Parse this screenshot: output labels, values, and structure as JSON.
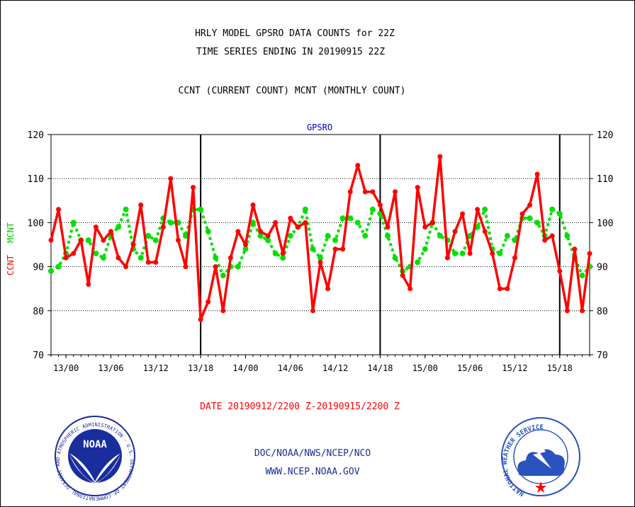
{
  "header": {
    "title_line1": "HRLY MODEL GPSRO DATA COUNTS for 22Z",
    "title_line2": "TIME SERIES ENDING IN 20190915 22Z",
    "subtitle": "CCNT (CURRENT COUNT) MCNT (MONTHLY COUNT)"
  },
  "footer": {
    "date_range": "DATE 20190912/2200 Z-20190915/2200 Z",
    "org_line": "DOC/NOAA/NWS/NCEP/NCO",
    "website": "WWW.NCEP.NOAA.GOV"
  },
  "logos": {
    "noaa_label": "NOAA",
    "noaa_ring_text": "NATIONAL OCEANIC AND ATMOSPHERIC ADMINISTRATION · U.S. DEPARTMENT OF COMMERCE ·",
    "nws_ring_text": "NATIONAL WEATHER SERVICE"
  },
  "colors": {
    "ccnt": "#ff0000",
    "mcnt": "#00e000",
    "axis_label_blue": "#0000cc",
    "date_red": "#ff0000",
    "noaa_blue": "#1a2d9c",
    "nws_blue": "#2a52be"
  },
  "chart_data": {
    "type": "line",
    "title": "GPSRO",
    "ylabel_left": "CCNT",
    "ylabel_right": "MCNT",
    "ylim": [
      70,
      120
    ],
    "yticks": [
      70,
      80,
      90,
      100,
      110,
      120
    ],
    "xlim": [
      0,
      72
    ],
    "xticks": [
      {
        "label": "13/00",
        "x": 2
      },
      {
        "label": "13/06",
        "x": 8
      },
      {
        "label": "13/12",
        "x": 14
      },
      {
        "label": "13/18",
        "x": 20
      },
      {
        "label": "14/00",
        "x": 26
      },
      {
        "label": "14/06",
        "x": 32
      },
      {
        "label": "14/12",
        "x": 38
      },
      {
        "label": "14/18",
        "x": 44
      },
      {
        "label": "15/00",
        "x": 50
      },
      {
        "label": "15/06",
        "x": 56
      },
      {
        "label": "15/12",
        "x": 62
      },
      {
        "label": "15/18",
        "x": 68
      }
    ],
    "day_dividers": [
      20,
      44,
      68
    ],
    "grid_y": [
      80,
      90,
      100,
      110,
      120
    ],
    "series": [
      {
        "name": "CCNT",
        "values": [
          96,
          103,
          92,
          93,
          96,
          86,
          99,
          96,
          98,
          92,
          90,
          95,
          104,
          91,
          91,
          99,
          110,
          96,
          90,
          108,
          78,
          82,
          90,
          80,
          92,
          98,
          95,
          104,
          98,
          97,
          100,
          93,
          101,
          99,
          100,
          80,
          91,
          85,
          94,
          94,
          107,
          113,
          107,
          107,
          104,
          99,
          107,
          88,
          85,
          108,
          99,
          100,
          115,
          92,
          98,
          102,
          93,
          103,
          98,
          93,
          85,
          85,
          92,
          102,
          104,
          111,
          96,
          97,
          89,
          80,
          94,
          80,
          93
        ]
      },
      {
        "name": "MCNT",
        "values": [
          89,
          90,
          93,
          100,
          96,
          96,
          93,
          92,
          97,
          99,
          103,
          94,
          92,
          97,
          96,
          101,
          100,
          100,
          97,
          103,
          103,
          98,
          92,
          88,
          90,
          90,
          94,
          100,
          97,
          96,
          93,
          92,
          97,
          99,
          103,
          94,
          92,
          97,
          96,
          101,
          101,
          100,
          97,
          103,
          102,
          97,
          92,
          89,
          90,
          91,
          94,
          100,
          97,
          96,
          93,
          93,
          97,
          99,
          103,
          94,
          93,
          97,
          96,
          101,
          101,
          100,
          97,
          103,
          102,
          97,
          92,
          88,
          90
        ]
      }
    ]
  }
}
